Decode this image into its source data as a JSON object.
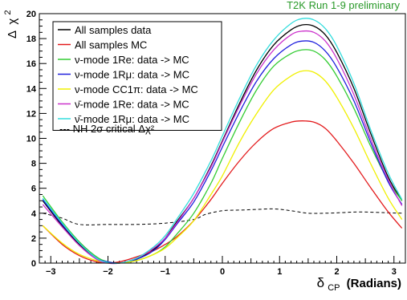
{
  "chart_data": {
    "type": "line",
    "prelim_label": "T2K Run 1-9 preliminary",
    "xlabel_main": "δ",
    "xlabel_sub": "CP",
    "xlabel_units": "(Radians)",
    "ylabel_delta": "Δ",
    "ylabel_chi": "χ",
    "ylabel_sup": "2",
    "xlim": [
      -3.2,
      3.2
    ],
    "ylim": [
      0,
      20
    ],
    "x_ticks": [
      {
        "v": -3,
        "label": "−3"
      },
      {
        "v": -2,
        "label": "−2"
      },
      {
        "v": -1,
        "label": "−1"
      },
      {
        "v": 0,
        "label": "0"
      },
      {
        "v": 1,
        "label": "1"
      },
      {
        "v": 2,
        "label": "2"
      },
      {
        "v": 3,
        "label": "3"
      }
    ],
    "y_ticks": [
      0,
      2,
      4,
      6,
      8,
      10,
      12,
      14,
      16,
      18,
      20
    ],
    "legend": [
      {
        "label": "All samples data",
        "color": "#000000"
      },
      {
        "label": "All samples MC",
        "color": "#e31a1c"
      },
      {
        "label": "ν-mode 1Re: data -> MC",
        "color": "#33cc33"
      },
      {
        "label": "ν-mode 1Rμ: data -> MC",
        "color": "#1f1fdd"
      },
      {
        "label": "ν-mode CC1π: data -> MC",
        "color": "#f0f000"
      },
      {
        "label": "ν̄-mode 1Re: data -> MC",
        "color": "#cc33cc"
      },
      {
        "label": "ν̄-mode 1Rμ: data -> MC",
        "color": "#33dddd"
      }
    ],
    "reference_label": "--- NH 2σ critical Δχ²",
    "series": [
      {
        "name": "All samples data",
        "color": "#000000",
        "x": [
          -3.14,
          -2.8,
          -2.5,
          -2.2,
          -2.0,
          -1.8,
          -1.5,
          -1.2,
          -1.0,
          -0.8,
          -0.5,
          -0.2,
          0,
          0.3,
          0.6,
          0.9,
          1.2,
          1.4,
          1.6,
          1.8,
          2.0,
          2.3,
          2.6,
          2.9,
          3.14
        ],
        "y": [
          5.0,
          3.0,
          1.5,
          0.4,
          0.05,
          0.0,
          0.3,
          1.1,
          2.0,
          3.3,
          5.2,
          7.8,
          9.8,
          12.8,
          15.5,
          17.5,
          18.7,
          19.1,
          19.0,
          18.3,
          16.9,
          14.0,
          10.3,
          6.9,
          5.0
        ]
      },
      {
        "name": "All samples MC",
        "color": "#e31a1c",
        "x": [
          -3.14,
          -2.8,
          -2.5,
          -2.2,
          -2.0,
          -1.8,
          -1.5,
          -1.2,
          -1.0,
          -0.8,
          -0.5,
          -0.2,
          0,
          0.3,
          0.6,
          0.9,
          1.2,
          1.4,
          1.6,
          1.8,
          2.0,
          2.3,
          2.6,
          2.9,
          3.14
        ],
        "y": [
          3.0,
          1.5,
          0.6,
          0.1,
          0.0,
          0.1,
          0.5,
          1.0,
          1.5,
          2.1,
          3.4,
          5.1,
          6.4,
          8.2,
          9.7,
          10.8,
          11.3,
          11.4,
          11.3,
          10.8,
          9.8,
          8.0,
          6.0,
          4.1,
          2.8
        ]
      },
      {
        "name": "ν-mode 1Re: data -> MC",
        "color": "#33cc33",
        "x": [
          -3.14,
          -2.8,
          -2.5,
          -2.2,
          -2.0,
          -1.8,
          -1.5,
          -1.2,
          -1.0,
          -0.8,
          -0.5,
          -0.2,
          0,
          0.3,
          0.6,
          0.9,
          1.2,
          1.4,
          1.6,
          1.8,
          2.0,
          2.3,
          2.6,
          2.9,
          3.14
        ],
        "y": [
          5.4,
          3.3,
          1.7,
          0.5,
          0.1,
          0.0,
          0.2,
          0.7,
          1.3,
          2.3,
          4.0,
          6.4,
          8.4,
          11.3,
          13.9,
          15.8,
          16.8,
          17.1,
          17.0,
          16.3,
          15.0,
          12.4,
          9.3,
          6.6,
          5.0
        ]
      },
      {
        "name": "ν-mode 1Rμ: data -> MC",
        "color": "#1f1fdd",
        "x": [
          -3.14,
          -2.8,
          -2.5,
          -2.2,
          -2.0,
          -1.8,
          -1.5,
          -1.2,
          -1.0,
          -0.8,
          -0.5,
          -0.2,
          0,
          0.3,
          0.6,
          0.9,
          1.2,
          1.4,
          1.6,
          1.8,
          2.0,
          2.3,
          2.6,
          2.9,
          3.14
        ],
        "y": [
          5.1,
          3.1,
          1.6,
          0.4,
          0.1,
          0.0,
          0.3,
          1.0,
          1.9,
          3.1,
          4.9,
          7.4,
          9.3,
          12.1,
          14.6,
          16.4,
          17.5,
          17.8,
          17.7,
          17.0,
          15.7,
          13.0,
          9.6,
          6.5,
          4.7
        ]
      },
      {
        "name": "ν-mode CC1π: data -> MC",
        "color": "#f0f000",
        "x": [
          -3.14,
          -2.8,
          -2.5,
          -2.2,
          -2.0,
          -1.8,
          -1.5,
          -1.2,
          -1.0,
          -0.8,
          -0.5,
          -0.2,
          0,
          0.3,
          0.6,
          0.9,
          1.2,
          1.4,
          1.6,
          1.8,
          2.0,
          2.3,
          2.6,
          2.9,
          3.14
        ],
        "y": [
          3.0,
          1.6,
          0.7,
          0.2,
          0.0,
          0.0,
          0.2,
          0.7,
          1.2,
          2.0,
          3.4,
          5.5,
          7.0,
          9.7,
          12.0,
          13.9,
          15.0,
          15.4,
          15.3,
          14.6,
          13.3,
          10.8,
          7.9,
          5.2,
          3.5
        ]
      },
      {
        "name": "ν̄-mode 1Re: data -> MC",
        "color": "#cc33cc",
        "x": [
          -3.14,
          -2.8,
          -2.5,
          -2.2,
          -2.0,
          -1.8,
          -1.5,
          -1.2,
          -1.0,
          -0.8,
          -0.5,
          -0.2,
          0,
          0.3,
          0.6,
          0.9,
          1.2,
          1.4,
          1.6,
          1.8,
          2.0,
          2.3,
          2.6,
          2.9,
          3.14
        ],
        "y": [
          4.7,
          2.9,
          1.4,
          0.3,
          0.0,
          0.0,
          0.4,
          1.2,
          2.0,
          3.2,
          5.2,
          7.7,
          9.7,
          12.6,
          15.2,
          17.1,
          18.3,
          18.6,
          18.5,
          17.8,
          16.4,
          13.5,
          9.9,
          6.7,
          4.6
        ]
      },
      {
        "name": "ν̄-mode 1Rμ: data -> MC",
        "color": "#33dddd",
        "x": [
          -3.14,
          -2.8,
          -2.5,
          -2.2,
          -2.0,
          -1.8,
          -1.5,
          -1.2,
          -1.0,
          -0.8,
          -0.5,
          -0.2,
          0,
          0.3,
          0.6,
          0.9,
          1.2,
          1.4,
          1.6,
          1.8,
          2.0,
          2.3,
          2.6,
          2.9,
          3.14
        ],
        "y": [
          5.2,
          3.2,
          1.6,
          0.4,
          0.05,
          0.0,
          0.4,
          1.3,
          2.2,
          3.5,
          5.6,
          8.2,
          10.2,
          13.2,
          15.9,
          17.9,
          19.2,
          19.6,
          19.5,
          18.8,
          17.4,
          14.4,
          10.6,
          7.2,
          5.1
        ]
      },
      {
        "name": "NH 2σ critical Δχ²",
        "color": "#000000",
        "dashed": true,
        "x": [
          -3.14,
          -2.8,
          -2.5,
          -2.0,
          -1.5,
          -1.0,
          -0.5,
          -0.3,
          0,
          0.3,
          0.6,
          0.9,
          1.2,
          1.5,
          1.8,
          2.1,
          2.4,
          2.8,
          3.14
        ],
        "y": [
          4.0,
          3.6,
          3.1,
          3.1,
          3.1,
          3.2,
          3.5,
          3.9,
          4.2,
          4.25,
          4.3,
          4.35,
          4.2,
          4.0,
          4.0,
          4.05,
          4.1,
          4.05,
          4.0
        ]
      }
    ]
  }
}
